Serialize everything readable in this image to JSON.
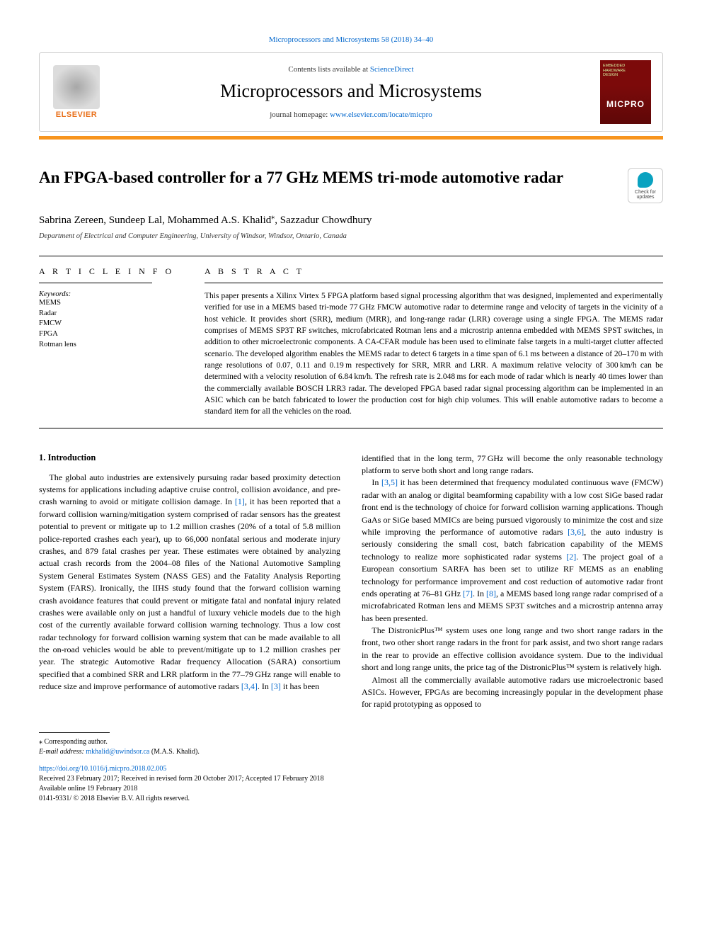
{
  "header": {
    "journal_ref": "Microprocessors and Microsystems 58 (2018) 34–40",
    "contents_prefix": "Contents lists available at ",
    "contents_link": "ScienceDirect",
    "journal_title": "Microprocessors and Microsystems",
    "homepage_prefix": "journal homepage: ",
    "homepage_link": "www.elsevier.com/locate/micpro",
    "elsevier_label": "ELSEVIER",
    "cover_text1": "EMBEDDED",
    "cover_text2": "HARDWARE",
    "cover_text3": "DESIGN",
    "cover_logo": "MICPRO"
  },
  "check_badge": {
    "line1": "Check for",
    "line2": "updates"
  },
  "article": {
    "title": "An FPGA-based controller for a 77 GHz MEMS tri-mode automotive radar",
    "authors": "Sabrina Zereen, Sundeep Lal, Mohammed A.S. Khalid",
    "corr_mark": "⁎",
    "authors_tail": ", Sazzadur Chowdhury",
    "affiliation": "Department of Electrical and Computer Engineering, University of Windsor, Windsor, Ontario, Canada"
  },
  "info": {
    "head": "A R T I C L E   I N F O",
    "kw_label": "Keywords:",
    "keywords": [
      "MEMS",
      "Radar",
      "FMCW",
      "FPGA",
      "Rotman lens"
    ]
  },
  "abstract": {
    "head": "A B S T R A C T",
    "text": "This paper presents a Xilinx Virtex 5 FPGA platform based signal processing algorithm that was designed, implemented and experimentally verified for use in a MEMS based tri-mode 77 GHz FMCW automotive radar to determine range and velocity of targets in the vicinity of a host vehicle. It provides short (SRR), medium (MRR), and long-range radar (LRR) coverage using a single FPGA. The MEMS radar comprises of MEMS SP3T RF switches, microfabricated Rotman lens and a microstrip antenna embedded with MEMS SPST switches, in addition to other microelectronic components. A CA-CFAR module has been used to eliminate false targets in a multi-target clutter affected scenario. The developed algorithm enables the MEMS radar to detect 6 targets in a time span of 6.1 ms between a distance of 20–170 m with range resolutions of 0.07, 0.11 and 0.19 m respectively for SRR, MRR and LRR. A maximum relative velocity of 300 km/h can be determined with a velocity resolution of 6.84 km/h. The refresh rate is 2.048 ms for each mode of radar which is nearly 40 times lower than the commercially available BOSCH LRR3 radar. The developed FPGA based radar signal processing algorithm can be implemented in an ASIC which can be batch fabricated to lower the production cost for high chip volumes. This will enable automotive radars to become a standard item for all the vehicles on the road."
  },
  "body": {
    "section_heading": "1. Introduction",
    "col1": {
      "p1a": "The global auto industries are extensively pursuing radar based proximity detection systems for applications including adaptive cruise control, collision avoidance, and pre-crash warning to avoid or mitigate collision damage. In ",
      "c1": "[1]",
      "p1b": ", it has been reported that a forward collision warning/mitigation system comprised of radar sensors has the greatest potential to prevent or mitigate up to 1.2 million crashes (20% of a total of 5.8 million police-reported crashes each year), up to 66,000 nonfatal serious and moderate injury crashes, and 879 fatal crashes per year. These estimates were obtained by analyzing actual crash records from the 2004–08 files of the National Automotive Sampling System General Estimates System (NASS GES) and the Fatality Analysis Reporting System (FARS). Ironically, the IIHS study found that the forward collision warning crash avoidance features that could prevent or mitigate fatal and nonfatal injury related crashes were available only on just a handful of luxury vehicle models due to the high cost of the currently available forward collision warning technology. Thus a low cost radar technology for forward collision warning system that can be made available to all the on-road vehicles would be able to prevent/mitigate up to 1.2 million crashes per year. The strategic Automotive Radar frequency Allocation (SARA) consortium specified that a combined SRR and LRR platform in the 77–79 GHz range will enable to reduce size and improve performance of automotive radars ",
      "c2": "[3,4]",
      "p1c": ". In ",
      "c3": "[3]",
      "p1d": " it has been"
    },
    "col2": {
      "p1": "identified that in the long term, 77 GHz will become the only reasonable technology platform to serve both short and long range radars.",
      "p2a": "In ",
      "c1": "[3,5]",
      "p2b": " it has been determined that frequency modulated continuous wave (FMCW) radar with an analog or digital beamforming capability with a low cost SiGe based radar front end is the technology of choice for forward collision warning applications. Though GaAs or SiGe based MMICs are being pursued vigorously to minimize the cost and size while improving the performance of automotive radars ",
      "c2": "[3,6]",
      "p2c": ", the auto industry is seriously considering the small cost, batch fabrication capability of the MEMS technology to realize more sophisticated radar systems ",
      "c3": "[2]",
      "p2d": ". The project goal of a European consortium SARFA has been set to utilize RF MEMS as an enabling technology for performance improvement and cost reduction of automotive radar front ends operating at 76–81 GHz ",
      "c4": "[7]",
      "p2e": ". In ",
      "c5": "[8]",
      "p2f": ", a MEMS based long range radar comprised of a microfabricated Rotman lens and MEMS SP3T switches and a microstrip antenna array has been presented.",
      "p3": "The DistronicPlus™ system uses one long range and two short range radars in the front, two other short range radars in the front for park assist, and two short range radars in the rear to provide an effective collision avoidance system. Due to the individual short and long range units, the price tag of the DistronicPlus™ system is relatively high.",
      "p4": "Almost all the commercially available automotive radars use microelectronic based ASICs. However, FPGAs are becoming increasingly popular in the development phase for rapid prototyping as opposed to"
    }
  },
  "footer": {
    "corr_note": "⁎ Corresponding author.",
    "email_label": "E-mail address: ",
    "email": "mkhalid@uwindsor.ca",
    "email_tail": " (M.A.S. Khalid).",
    "doi": "https://doi.org/10.1016/j.micpro.2018.02.005",
    "received": "Received 23 February 2017; Received in revised form 20 October 2017; Accepted 17 February 2018",
    "online": "Available online 19 February 2018",
    "copyright": "0141-9331/ © 2018 Elsevier B.V. All rights reserved."
  },
  "colors": {
    "link": "#0066cc",
    "orange_rule": "#f7941d",
    "elsevier_orange": "#e9711c",
    "cover_bg": "#7c0a0a",
    "check_teal": "#0aa2c0"
  }
}
